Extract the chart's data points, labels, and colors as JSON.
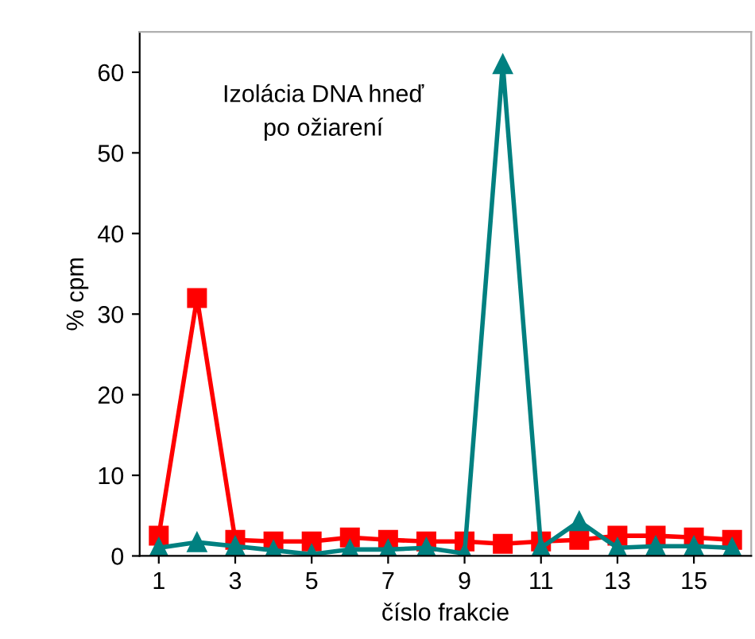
{
  "chart_data": {
    "type": "line",
    "xlabel": "číslo frakcie",
    "ylabel": "% cpm",
    "annotations": [
      "Izolácia DNA hneď\npo ožiarení"
    ],
    "x": [
      1,
      2,
      3,
      4,
      5,
      6,
      7,
      8,
      9,
      10,
      11,
      12,
      13,
      14,
      15,
      16
    ],
    "xlim": [
      0.5,
      16.5
    ],
    "xticks": [
      1,
      3,
      5,
      7,
      9,
      11,
      13,
      15
    ],
    "ylim": [
      0,
      65
    ],
    "yticks": [
      0,
      10,
      20,
      30,
      40,
      50,
      60
    ],
    "grid": false,
    "legend": false,
    "series": [
      {
        "color": "#ff0000",
        "marker": "square",
        "values": [
          2.5,
          32,
          2,
          1.8,
          1.8,
          2.3,
          2,
          1.8,
          1.8,
          1.5,
          1.8,
          2,
          2.5,
          2.5,
          2.3,
          2
        ]
      },
      {
        "color": "#008080",
        "marker": "triangle",
        "values": [
          1,
          1.7,
          1.2,
          0.7,
          0.2,
          0.8,
          0.8,
          1,
          0.3,
          61,
          1,
          4.3,
          1,
          1.2,
          1.2,
          1
        ]
      }
    ]
  }
}
